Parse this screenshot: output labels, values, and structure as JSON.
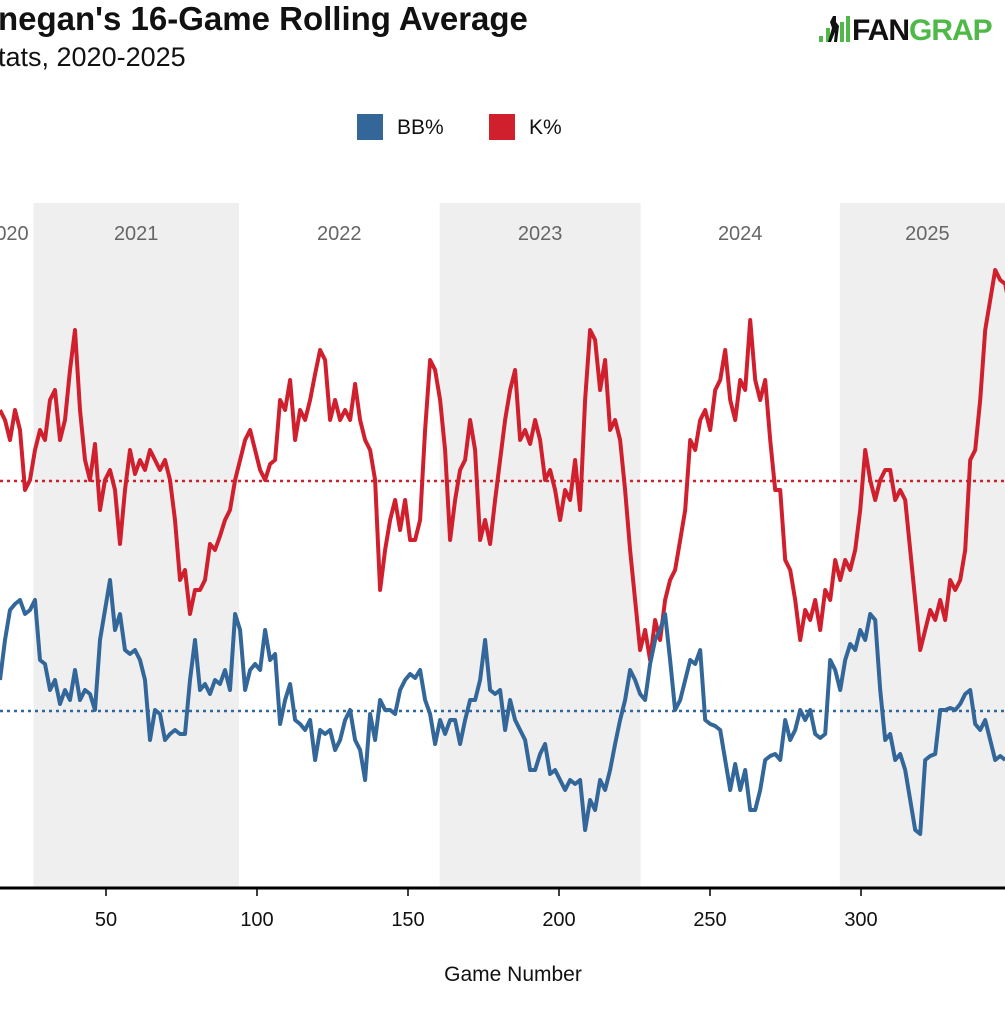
{
  "header": {
    "title": "negan's 16-Game Rolling Average",
    "subtitle": "tats, 2020-2025",
    "logo_text_dark": "FAN",
    "logo_text_green": "GRAP"
  },
  "chart_data": {
    "type": "line",
    "xlabel": "Game Number",
    "ylabel": "",
    "x_ticks": [
      50,
      100,
      150,
      200,
      250,
      300
    ],
    "xlim": [
      15,
      348
    ],
    "ylim": [
      0,
      34
    ],
    "grid": false,
    "legend_position": "top-center",
    "legend": [
      {
        "name": "BB%",
        "color": "#336699"
      },
      {
        "name": "K%",
        "color": "#d0202e"
      }
    ],
    "seasons": [
      {
        "label": "2020",
        "start": 0,
        "end": 26,
        "shaded": false
      },
      {
        "label": "2021",
        "start": 26,
        "end": 94,
        "shaded": true
      },
      {
        "label": "2022",
        "start": 94,
        "end": 160.5,
        "shaded": false
      },
      {
        "label": "2023",
        "start": 160.5,
        "end": 227,
        "shaded": true
      },
      {
        "label": "2024",
        "start": 227,
        "end": 293,
        "shaded": false
      },
      {
        "label": "2025",
        "start": 293,
        "end": 360,
        "shaded": true
      }
    ],
    "season_label_visible": [
      "020",
      "2021",
      "2022",
      "2023",
      "2024",
      "2025"
    ],
    "x_start": 14.9,
    "x_step": 1.656,
    "series": [
      {
        "name": "K%",
        "color": "#d0202e",
        "average": 20.35,
        "values": [
          23.9,
          23.4,
          22.4,
          23.9,
          22.9,
          19.9,
          20.4,
          21.9,
          22.9,
          22.4,
          24.4,
          24.9,
          22.4,
          23.4,
          25.9,
          27.9,
          23.9,
          21.4,
          20.4,
          22.2,
          18.9,
          20.4,
          20.9,
          19.9,
          17.2,
          19.9,
          21.9,
          20.7,
          21.4,
          20.9,
          21.9,
          21.4,
          20.9,
          21.4,
          20.4,
          18.4,
          15.4,
          15.9,
          13.7,
          14.9,
          14.9,
          15.4,
          17.2,
          16.9,
          17.6,
          18.4,
          18.9,
          20.4,
          21.4,
          22.4,
          22.9,
          21.9,
          20.9,
          20.4,
          21.2,
          21.4,
          24.4,
          23.9,
          25.4,
          22.4,
          23.9,
          23.4,
          24.4,
          25.7,
          26.9,
          26.4,
          23.4,
          24.4,
          23.4,
          23.9,
          23.4,
          25.2,
          23.4,
          22.4,
          21.9,
          20.4,
          14.9,
          16.9,
          18.4,
          19.4,
          17.9,
          19.4,
          17.4,
          17.4,
          18.4,
          22.9,
          26.4,
          25.9,
          24.4,
          21.9,
          17.4,
          19.4,
          20.9,
          21.4,
          23.4,
          21.9,
          17.4,
          18.4,
          17.2,
          19.4,
          21.4,
          23.4,
          24.9,
          25.9,
          22.4,
          22.9,
          22.2,
          23.4,
          22.4,
          20.4,
          20.9,
          19.9,
          18.4,
          19.9,
          19.4,
          21.4,
          18.9,
          24.4,
          27.9,
          27.4,
          24.9,
          26.4,
          22.9,
          23.4,
          22.4,
          19.9,
          16.9,
          14.4,
          11.9,
          12.9,
          11.4,
          13.4,
          12.4,
          14.4,
          15.4,
          15.9,
          17.4,
          18.9,
          22.4,
          21.9,
          23.4,
          23.9,
          22.9,
          24.9,
          25.4,
          26.9,
          24.4,
          23.4,
          25.4,
          24.9,
          28.4,
          25.4,
          24.4,
          25.4,
          22.4,
          19.9,
          19.9,
          16.4,
          15.9,
          14.4,
          12.4,
          13.9,
          13.4,
          14.4,
          12.9,
          14.9,
          14.4,
          16.4,
          15.4,
          16.4,
          15.9,
          16.9,
          18.9,
          21.9,
          20.4,
          19.4,
          20.4,
          20.9,
          20.9,
          19.4,
          19.9,
          19.4,
          16.9,
          14.4,
          11.9,
          12.9,
          13.9,
          13.4,
          14.4,
          13.4,
          15.4,
          14.9,
          15.4,
          16.9,
          21.4,
          21.9,
          24.4,
          27.9,
          29.4,
          30.9,
          30.4,
          30.2,
          28.9
        ]
      },
      {
        "name": "BB%",
        "color": "#336699",
        "average": 8.85,
        "values": [
          10.4,
          12.4,
          13.9,
          14.2,
          14.4,
          13.7,
          13.9,
          14.4,
          11.4,
          11.2,
          9.9,
          10.4,
          9.2,
          9.9,
          9.4,
          10.9,
          9.4,
          9.9,
          9.7,
          8.9,
          12.4,
          13.9,
          15.4,
          12.9,
          13.7,
          11.9,
          11.7,
          11.9,
          11.4,
          10.4,
          7.4,
          8.9,
          8.7,
          7.4,
          7.7,
          7.9,
          7.7,
          7.7,
          10.4,
          12.4,
          9.9,
          10.2,
          9.7,
          10.4,
          10.2,
          10.9,
          9.9,
          13.7,
          12.9,
          9.9,
          10.9,
          11.2,
          10.9,
          12.9,
          11.4,
          11.7,
          8.2,
          9.4,
          10.2,
          8.4,
          8.2,
          7.9,
          8.4,
          6.4,
          7.9,
          7.7,
          7.9,
          6.9,
          7.4,
          8.4,
          8.9,
          7.4,
          6.9,
          5.4,
          8.7,
          7.4,
          9.4,
          8.9,
          8.9,
          8.7,
          9.9,
          10.4,
          10.7,
          10.5,
          10.9,
          9.4,
          8.7,
          7.2,
          8.4,
          7.7,
          8.4,
          8.4,
          7.2,
          8.4,
          9.4,
          9.4,
          10.4,
          12.4,
          9.9,
          9.7,
          9.9,
          7.9,
          9.4,
          8.4,
          7.9,
          7.4,
          5.9,
          5.9,
          6.7,
          7.2,
          5.7,
          5.9,
          5.4,
          4.9,
          5.4,
          5.2,
          5.4,
          2.9,
          4.4,
          3.9,
          5.4,
          4.9,
          5.9,
          7.2,
          8.4,
          9.4,
          10.9,
          10.4,
          9.7,
          9.4,
          11.2,
          12.4,
          12.9,
          13.7,
          11.4,
          8.9,
          9.4,
          10.4,
          11.4,
          11.2,
          11.9,
          8.4,
          8.2,
          8.1,
          7.9,
          6.4,
          4.9,
          6.2,
          4.9,
          5.9,
          3.9,
          3.9,
          4.9,
          6.4,
          6.6,
          6.7,
          6.4,
          8.4,
          7.4,
          7.9,
          8.9,
          8.4,
          8.9,
          7.7,
          7.5,
          7.7,
          11.4,
          10.9,
          9.9,
          11.4,
          12.2,
          11.9,
          12.9,
          12.4,
          13.7,
          13.4,
          9.9,
          7.4,
          7.7,
          6.4,
          6.7,
          5.9,
          4.4,
          2.9,
          2.7,
          6.4,
          6.6,
          6.7,
          8.9,
          8.9,
          9.0,
          8.9,
          9.2,
          9.7,
          9.9,
          8.2,
          7.9,
          8.4,
          7.4,
          6.4,
          6.6,
          6.4
        ]
      }
    ]
  }
}
